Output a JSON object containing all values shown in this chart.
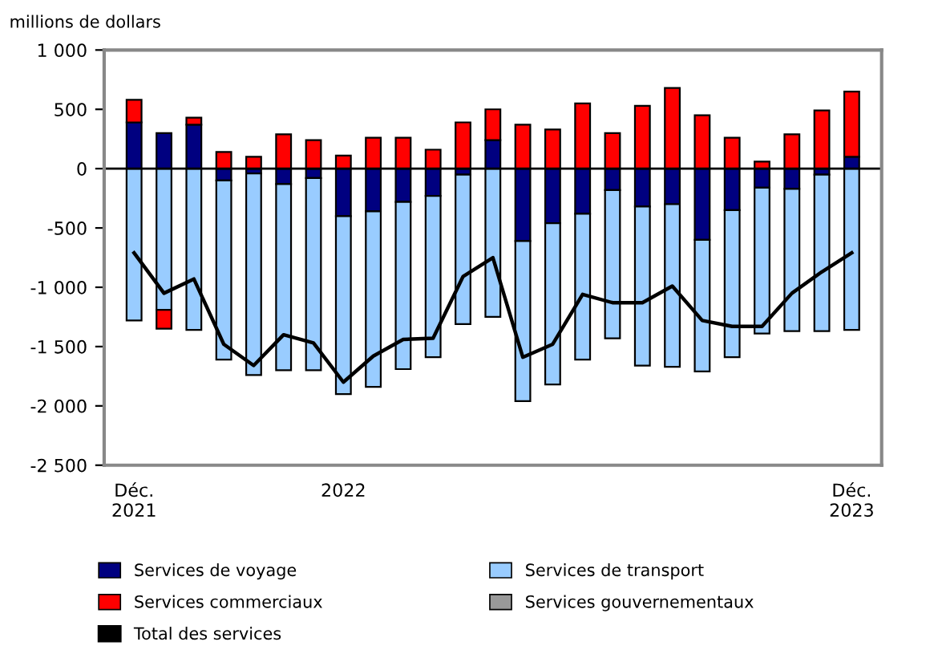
{
  "chart_data": {
    "type": "bar",
    "stacked": true,
    "ylabel": "millions de dollars",
    "categories": [
      "Déc.\n2021",
      null,
      null,
      null,
      null,
      null,
      null,
      "2022",
      null,
      null,
      null,
      null,
      null,
      null,
      null,
      null,
      null,
      null,
      null,
      null,
      null,
      null,
      null,
      null,
      "Déc.\n2023"
    ],
    "series": [
      {
        "name": "Services de voyage",
        "color": "#000080",
        "values": [
          390,
          300,
          370,
          -100,
          -40,
          -130,
          -80,
          -400,
          -360,
          -280,
          -230,
          -50,
          240,
          -610,
          -460,
          -380,
          -180,
          -320,
          -300,
          -600,
          -350,
          -160,
          -170,
          -50,
          100
        ]
      },
      {
        "name": "Services de transport",
        "color": "#99ccff",
        "values": [
          -1280,
          -1190,
          -1360,
          -1510,
          -1700,
          -1570,
          -1620,
          -1500,
          -1480,
          -1410,
          -1360,
          -1260,
          -1250,
          -1350,
          -1360,
          -1230,
          -1250,
          -1340,
          -1370,
          -1110,
          -1240,
          -1230,
          -1200,
          -1320,
          -1360
        ]
      },
      {
        "name": "Services commerciaux",
        "color": "#ff0000",
        "values": [
          190,
          -160,
          60,
          140,
          100,
          290,
          240,
          110,
          260,
          260,
          160,
          390,
          260,
          370,
          330,
          550,
          300,
          530,
          680,
          450,
          260,
          60,
          290,
          490,
          550
        ]
      },
      {
        "name": "Services gouvernementaux",
        "color": "#999999",
        "values": [
          null,
          null,
          null,
          null,
          null,
          null,
          null,
          null,
          null,
          null,
          null,
          null,
          null,
          null,
          null,
          null,
          null,
          null,
          null,
          null,
          null,
          null,
          null,
          null,
          null
        ]
      },
      {
        "name": "Total des services",
        "type": "line",
        "color": "#000000",
        "values": [
          -710,
          -1050,
          -930,
          -1480,
          -1660,
          -1400,
          -1470,
          -1800,
          -1580,
          -1440,
          -1430,
          -910,
          -750,
          -1590,
          -1480,
          -1060,
          -1130,
          -1130,
          -990,
          -1280,
          -1330,
          -1330,
          -1050,
          -870,
          -710
        ]
      }
    ],
    "ylim": [
      -2500,
      1000
    ],
    "yticks": [
      {
        "value": -2500,
        "label": "-2 500"
      },
      {
        "value": -2000,
        "label": "-2 000"
      },
      {
        "value": -1500,
        "label": "-1 500"
      },
      {
        "value": -1000,
        "label": "-1 000"
      },
      -500,
      0,
      500,
      {
        "value": 1000,
        "label": "1 000"
      }
    ],
    "ref_lines": [
      {
        "axis": "y",
        "value": 0,
        "color": "#000000"
      }
    ],
    "grid": false,
    "legend": "bottom",
    "marker": "none",
    "line_style": "solid"
  }
}
